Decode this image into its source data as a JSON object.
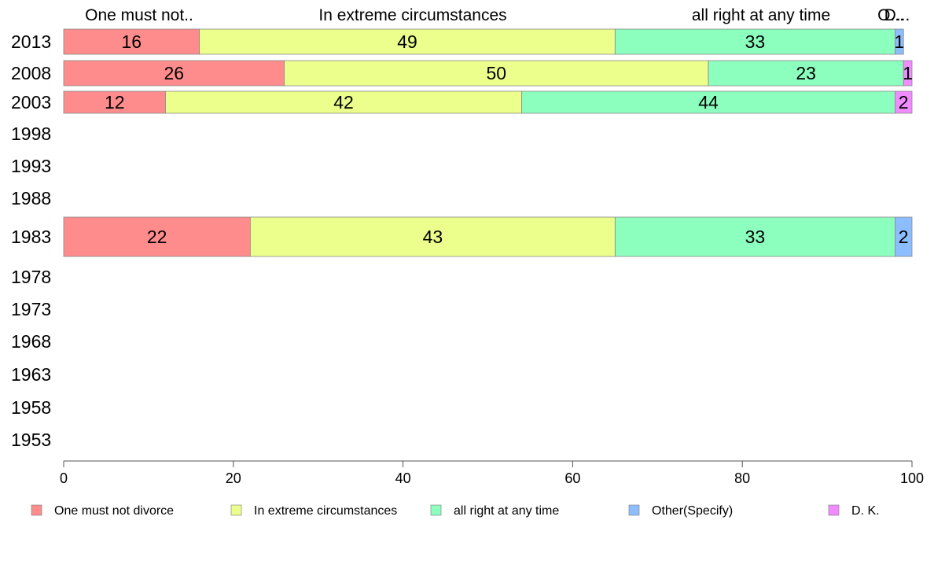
{
  "chart_data": {
    "type": "bar",
    "orientation": "horizontal",
    "stacked": true,
    "top_labels": [
      "One must not..",
      "In extreme circumstances",
      "all right at any time",
      "O...",
      "D..."
    ],
    "categories": [
      "2013",
      "2008",
      "2003",
      "1998",
      "1993",
      "1988",
      "1983",
      "1978",
      "1973",
      "1968",
      "1963",
      "1958",
      "1953"
    ],
    "series": [
      {
        "name": "One must not divorce",
        "color": "#ff8c8c",
        "values": [
          16,
          26,
          12,
          null,
          null,
          null,
          22,
          null,
          null,
          null,
          null,
          null,
          null
        ],
        "labels": [
          "16",
          "26",
          "12",
          "",
          "",
          "",
          "22",
          "",
          "",
          "",
          "",
          "",
          ""
        ]
      },
      {
        "name": "In extreme circumstances",
        "color": "#ecff8c",
        "values": [
          49,
          50,
          42,
          null,
          null,
          null,
          43,
          null,
          null,
          null,
          null,
          null,
          null
        ],
        "labels": [
          "49",
          "50",
          "42",
          "",
          "",
          "",
          "43",
          "",
          "",
          "",
          "",
          "",
          ""
        ]
      },
      {
        "name": "all right at any time",
        "color": "#8cffbe",
        "values": [
          33,
          23,
          44,
          null,
          null,
          null,
          33,
          null,
          null,
          null,
          null,
          null,
          null
        ],
        "labels": [
          "33",
          "23",
          "44",
          "",
          "",
          "",
          "33",
          "",
          "",
          "",
          "",
          "",
          ""
        ]
      },
      {
        "name": "Other(Specify)",
        "color": "#8cbeff",
        "values": [
          1,
          0,
          0,
          null,
          null,
          null,
          2,
          null,
          null,
          null,
          null,
          null,
          null
        ],
        "labels": [
          "1",
          "",
          "",
          "",
          "",
          "",
          "2",
          "",
          "",
          "",
          "",
          "",
          ""
        ]
      },
      {
        "name": "D. K.",
        "color": "#f08cff",
        "values": [
          0,
          1,
          2,
          null,
          null,
          null,
          0,
          null,
          null,
          null,
          null,
          null,
          null
        ],
        "labels": [
          "",
          "1",
          "2",
          "",
          "",
          "",
          "",
          "",
          "",
          "",
          "",
          "",
          ""
        ]
      }
    ],
    "xlim": [
      0,
      100
    ],
    "xticks": [
      "0",
      "20",
      "40",
      "60",
      "80",
      "100"
    ],
    "grid": false,
    "legend_position": "bottom"
  }
}
